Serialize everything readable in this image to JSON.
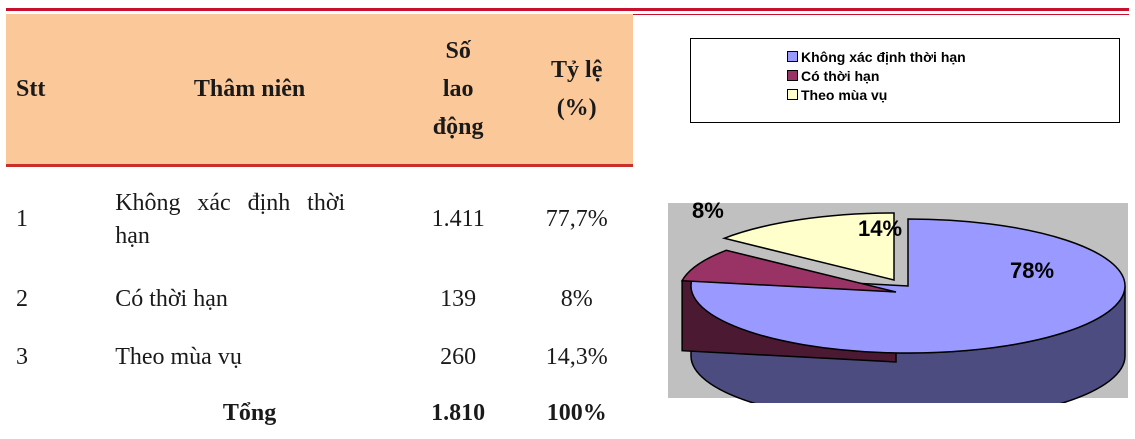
{
  "table": {
    "headers": {
      "stt": "Stt",
      "name": "Thâm niên",
      "count_lines": [
        "Số",
        "lao",
        "động"
      ],
      "pct_lines": [
        "Tỷ lệ",
        "(%)"
      ]
    },
    "rows": [
      {
        "stt": "1",
        "name": "Không xác định thời hạn",
        "count": "1.411",
        "pct": "77,7%"
      },
      {
        "stt": "2",
        "name": "Có thời hạn",
        "count": "139",
        "pct": "8%"
      },
      {
        "stt": "3",
        "name": "Theo mùa vụ",
        "count": "260",
        "pct": "14,3%"
      }
    ],
    "total": {
      "label": "Tổng",
      "count": "1.810",
      "pct": "100%"
    }
  },
  "colors": {
    "rule": "#c8102e",
    "header_bg": "#fbc89a",
    "plot_bg": "#c0c0c0"
  },
  "chart_data": {
    "type": "pie",
    "style": "3d-exploded",
    "legend_position": "top",
    "slices": [
      {
        "name": "Không xác định thời hạn",
        "value": 77.7,
        "label": "78%",
        "color": "#9999ff",
        "side_color": "#4c4c80"
      },
      {
        "name": "Có thời hạn",
        "value": 8,
        "label": "8%",
        "color": "#993366",
        "side_color": "#4c1933"
      },
      {
        "name": "Theo mùa vụ",
        "value": 14.3,
        "label": "14%",
        "color": "#ffffcc",
        "side_color": "#808066"
      }
    ]
  }
}
